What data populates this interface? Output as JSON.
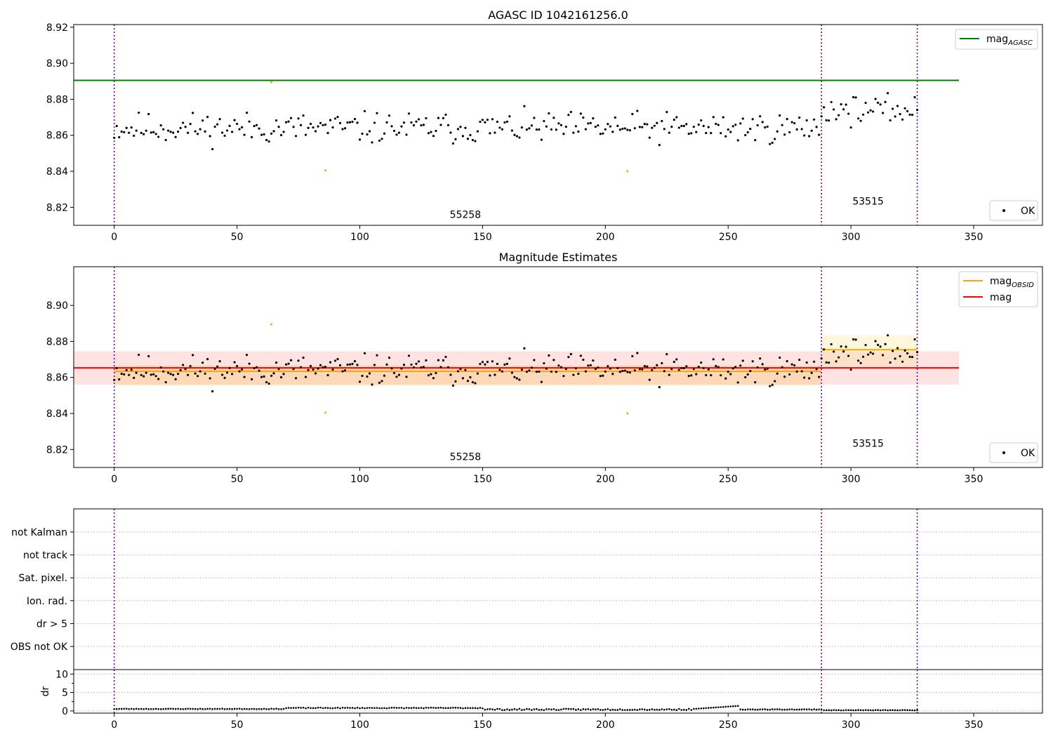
{
  "chart_data": [
    {
      "type": "scatter",
      "title": "AGASC ID 1042161256.0",
      "xlim": [
        -16.5,
        378
      ],
      "ylim": [
        8.81,
        8.9215
      ],
      "xticks": [
        0,
        50,
        100,
        150,
        200,
        250,
        300,
        350
      ],
      "yticks": [
        8.82,
        8.84,
        8.86,
        8.88,
        8.9,
        8.92
      ],
      "grid": false,
      "legend_top": {
        "placement": "top-right",
        "entries": [
          {
            "label": "mag",
            "subscript": "AGASC",
            "color": "#008000"
          }
        ]
      },
      "legend_bottom": {
        "placement": "bottom-right",
        "entries": [
          {
            "label": "OK",
            "color": "#000000"
          }
        ]
      },
      "hlines": [
        {
          "name": "mag_AGASC",
          "y": 8.8905,
          "x": [
            -16.5,
            344
          ],
          "color": "#008000"
        }
      ],
      "vlines": [
        0,
        288,
        327
      ],
      "annotations": [
        {
          "text": "55258",
          "x": 143,
          "y": 8.814
        },
        {
          "text": "53515",
          "x": 307,
          "y": 8.8215
        }
      ],
      "series": [
        {
          "name": "OK",
          "color": "#000000",
          "seed": 11,
          "segments": [
            {
              "x0": 0,
              "x1": 287,
              "base": 8.864,
              "spread": 0.008
            },
            {
              "x0": 288,
              "x1": 327,
              "base": 8.874,
              "spread": 0.007
            }
          ]
        },
        {
          "name": "not OK",
          "color": "#ffa500",
          "points": [
            [
              64,
              8.8895
            ],
            [
              86,
              8.8405
            ],
            [
              209,
              8.84
            ]
          ]
        }
      ]
    },
    {
      "type": "scatter",
      "title": "Magnitude Estimates",
      "xlim": [
        -16.5,
        378
      ],
      "ylim": [
        8.81,
        8.9215
      ],
      "xticks": [
        0,
        50,
        100,
        150,
        200,
        250,
        300,
        350
      ],
      "yticks": [
        8.82,
        8.84,
        8.86,
        8.88,
        8.9
      ],
      "grid": false,
      "legend_top": {
        "placement": "top-right",
        "entries": [
          {
            "label": "mag",
            "subscript": "OBSID",
            "color": "#ffa500"
          },
          {
            "label": "mag",
            "subscript": "",
            "color": "#ff0000"
          }
        ]
      },
      "legend_bottom": {
        "placement": "bottom-right",
        "entries": [
          {
            "label": "OK",
            "color": "#000000"
          }
        ]
      },
      "hlines": [
        {
          "name": "mag_OBSID_1",
          "y": 8.8634,
          "x": [
            0,
            288
          ],
          "color": "#ffa500"
        },
        {
          "name": "mag_OBSID_2",
          "y": 8.8754,
          "x": [
            288,
            327
          ],
          "color": "#ffa500"
        },
        {
          "name": "mag",
          "y": 8.8653,
          "x": [
            -16.5,
            344
          ],
          "color": "#ff0000"
        }
      ],
      "bands": [
        {
          "name": "mag-band",
          "y": [
            8.856,
            8.8745
          ],
          "x": [
            -16.5,
            344
          ],
          "color": "#ff0000",
          "opacity": 0.11
        },
        {
          "name": "mag-obsid-band-1",
          "y": [
            8.8555,
            8.8665
          ],
          "x": [
            0,
            288
          ],
          "color": "#ffa500",
          "opacity": 0.18
        },
        {
          "name": "mag-obsid-band-2",
          "y": [
            8.8665,
            8.8835
          ],
          "x": [
            288,
            327
          ],
          "color": "#ffd966",
          "opacity": 0.22
        }
      ],
      "vlines": [
        0,
        288,
        327
      ],
      "annotations": [
        {
          "text": "55258",
          "x": 143,
          "y": 8.814
        },
        {
          "text": "53515",
          "x": 307,
          "y": 8.8215
        }
      ],
      "series": [
        {
          "name": "OK",
          "color": "#000000",
          "seed": 11,
          "segments": [
            {
              "x0": 0,
              "x1": 287,
              "base": 8.864,
              "spread": 0.008
            },
            {
              "x0": 288,
              "x1": 327,
              "base": 8.874,
              "spread": 0.007
            }
          ]
        },
        {
          "name": "not OK",
          "color": "#ffa500",
          "points": [
            [
              64,
              8.8895
            ],
            [
              86,
              8.8405
            ],
            [
              209,
              8.84
            ]
          ]
        }
      ]
    },
    {
      "type": "scatter",
      "title": "",
      "xlim": [
        -16.5,
        378
      ],
      "categories": [
        "OBS not OK",
        "dr > 5",
        "Ion. rad.",
        "Sat. pixel.",
        "not track",
        "not Kalman"
      ],
      "vlines": [
        0,
        288,
        327
      ],
      "series": []
    },
    {
      "type": "scatter",
      "title": "",
      "xlim": [
        -16.5,
        378
      ],
      "ylim": [
        -0.6,
        11.2
      ],
      "xticks": [
        0,
        50,
        100,
        150,
        200,
        250,
        300,
        350
      ],
      "yticks": [
        0,
        5,
        10
      ],
      "ylabel": "dr",
      "vlines": [
        0,
        288,
        327
      ],
      "series": [
        {
          "name": "dr",
          "color": "#000000",
          "seed": 23,
          "segments": [
            {
              "x0": 0,
              "x1": 69,
              "base": 0.55,
              "spread": 0.15
            },
            {
              "x0": 70,
              "x1": 150,
              "base": 0.8,
              "spread": 0.2
            },
            {
              "x0": 151,
              "x1": 254,
              "base": 0.4,
              "spread": 0.35
            },
            {
              "x0": 255,
              "x1": 288,
              "base": 0.4,
              "spread": 0.15
            },
            {
              "x0": 289,
              "x1": 327,
              "base": 0.2,
              "spread": 0.1
            }
          ]
        }
      ]
    }
  ]
}
